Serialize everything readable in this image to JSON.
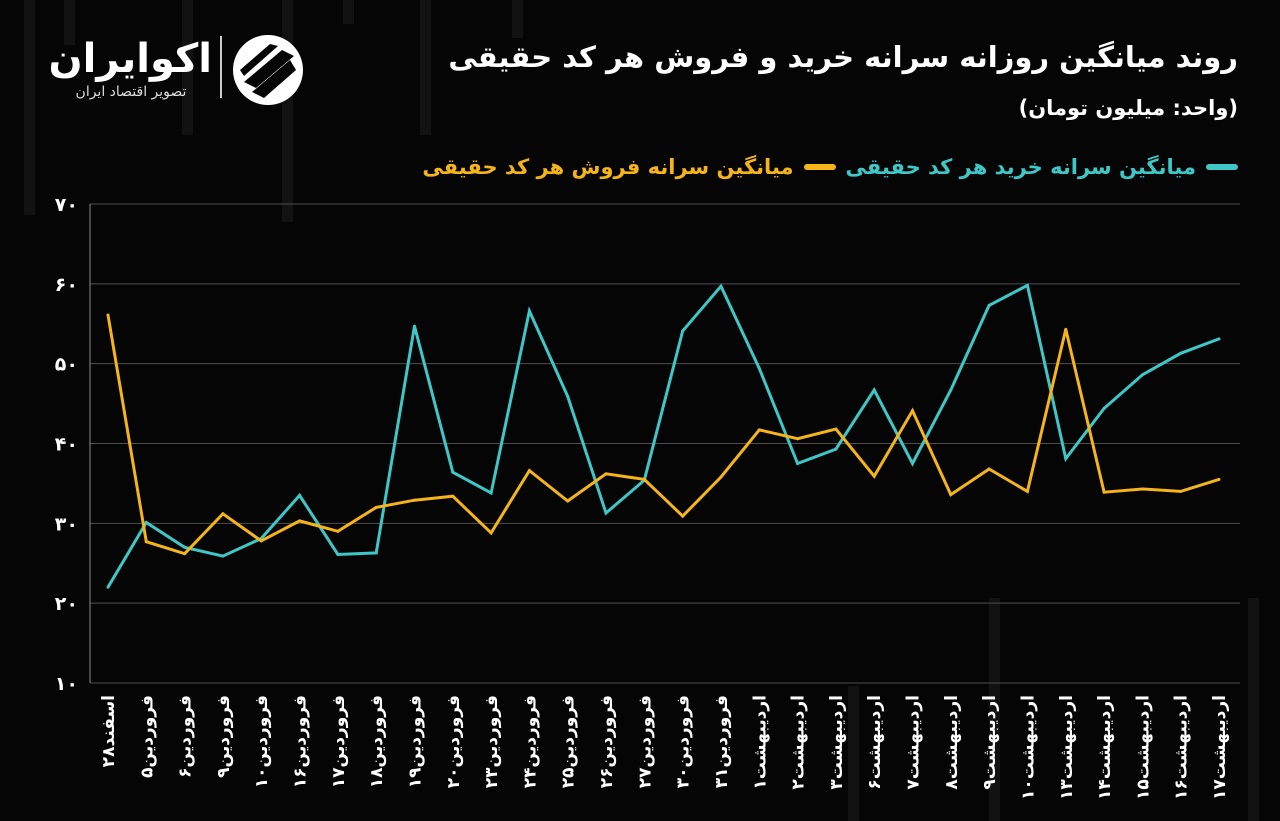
{
  "brand": {
    "name": "اکوایران",
    "tagline": "تصویر اقتصاد ایران"
  },
  "colors": {
    "background": "#050505",
    "buy": "#3fc6c6",
    "sell": "#f4b41a"
  },
  "chart_data": {
    "type": "line",
    "title": "روند میانگین روزانه سرانه خرید و فروش هر کد حقیقی",
    "subtitle": "(واحد: میلیون تومان)",
    "xlabel": "",
    "ylabel": "",
    "ylim": [
      10,
      70
    ],
    "yticks": [
      "۱۰",
      "۲۰",
      "۳۰",
      "۴۰",
      "۵۰",
      "۶۰",
      "۷۰"
    ],
    "ytick_values": [
      10,
      20,
      30,
      40,
      50,
      60,
      70
    ],
    "grid": true,
    "legend_position": "top-right",
    "categories": [
      "اسفند۲۸",
      "فروردین۵",
      "فروردین۶",
      "فروردین۹",
      "فروردین۱۰",
      "فروردین۱۶",
      "فروردین۱۷",
      "فروردین۱۸",
      "فروردین۱۹",
      "فروردین۲۰",
      "فروردین۲۳",
      "فروردین۲۴",
      "فروردین۲۵",
      "فروردین۲۶",
      "فروردین۲۷",
      "فروردین۳۰",
      "فروردین۳۱",
      "اردیبهشت۱",
      "اردیبهشت۲",
      "اردیبهشت۳",
      "اردیبهشت۶",
      "اردیبهشت۷",
      "اردیبهشت۸",
      "اردیبهشت۹",
      "اردیبهشت۱۰",
      "اردیبهشت۱۳",
      "اردیبهشت۱۴",
      "اردیبهشت۱۵",
      "اردیبهشت۱۶",
      "اردیبهشت۱۷"
    ],
    "series": [
      {
        "name": "میانگین سرانه خرید هر کد حقیقی",
        "color": "#3fc6c6",
        "values": [
          22,
          30.1,
          27,
          25.9,
          28.1,
          33.5,
          26.1,
          26.3,
          54.7,
          36.4,
          33.8,
          56.6,
          45.9,
          31.3,
          35.4,
          54.1,
          59.7,
          49.4,
          37.5,
          39.3,
          46.7,
          37.5,
          46.7,
          57.3,
          59.8,
          38.1,
          44.4,
          48.6,
          51.3,
          53.1
        ],
        "linewidth": 3
      },
      {
        "name": "میانگین سرانه فروش هر کد حقیقی",
        "color": "#f4b41a",
        "values": [
          56.1,
          27.7,
          26.2,
          31.2,
          27.8,
          30.3,
          29,
          32,
          32.9,
          33.4,
          28.8,
          36.6,
          32.8,
          36.2,
          35.5,
          30.9,
          35.8,
          41.7,
          40.6,
          41.8,
          35.9,
          44.1,
          33.6,
          36.8,
          34,
          54.3,
          33.9,
          34.3,
          34,
          35.5
        ],
        "linewidth": 3
      }
    ]
  }
}
